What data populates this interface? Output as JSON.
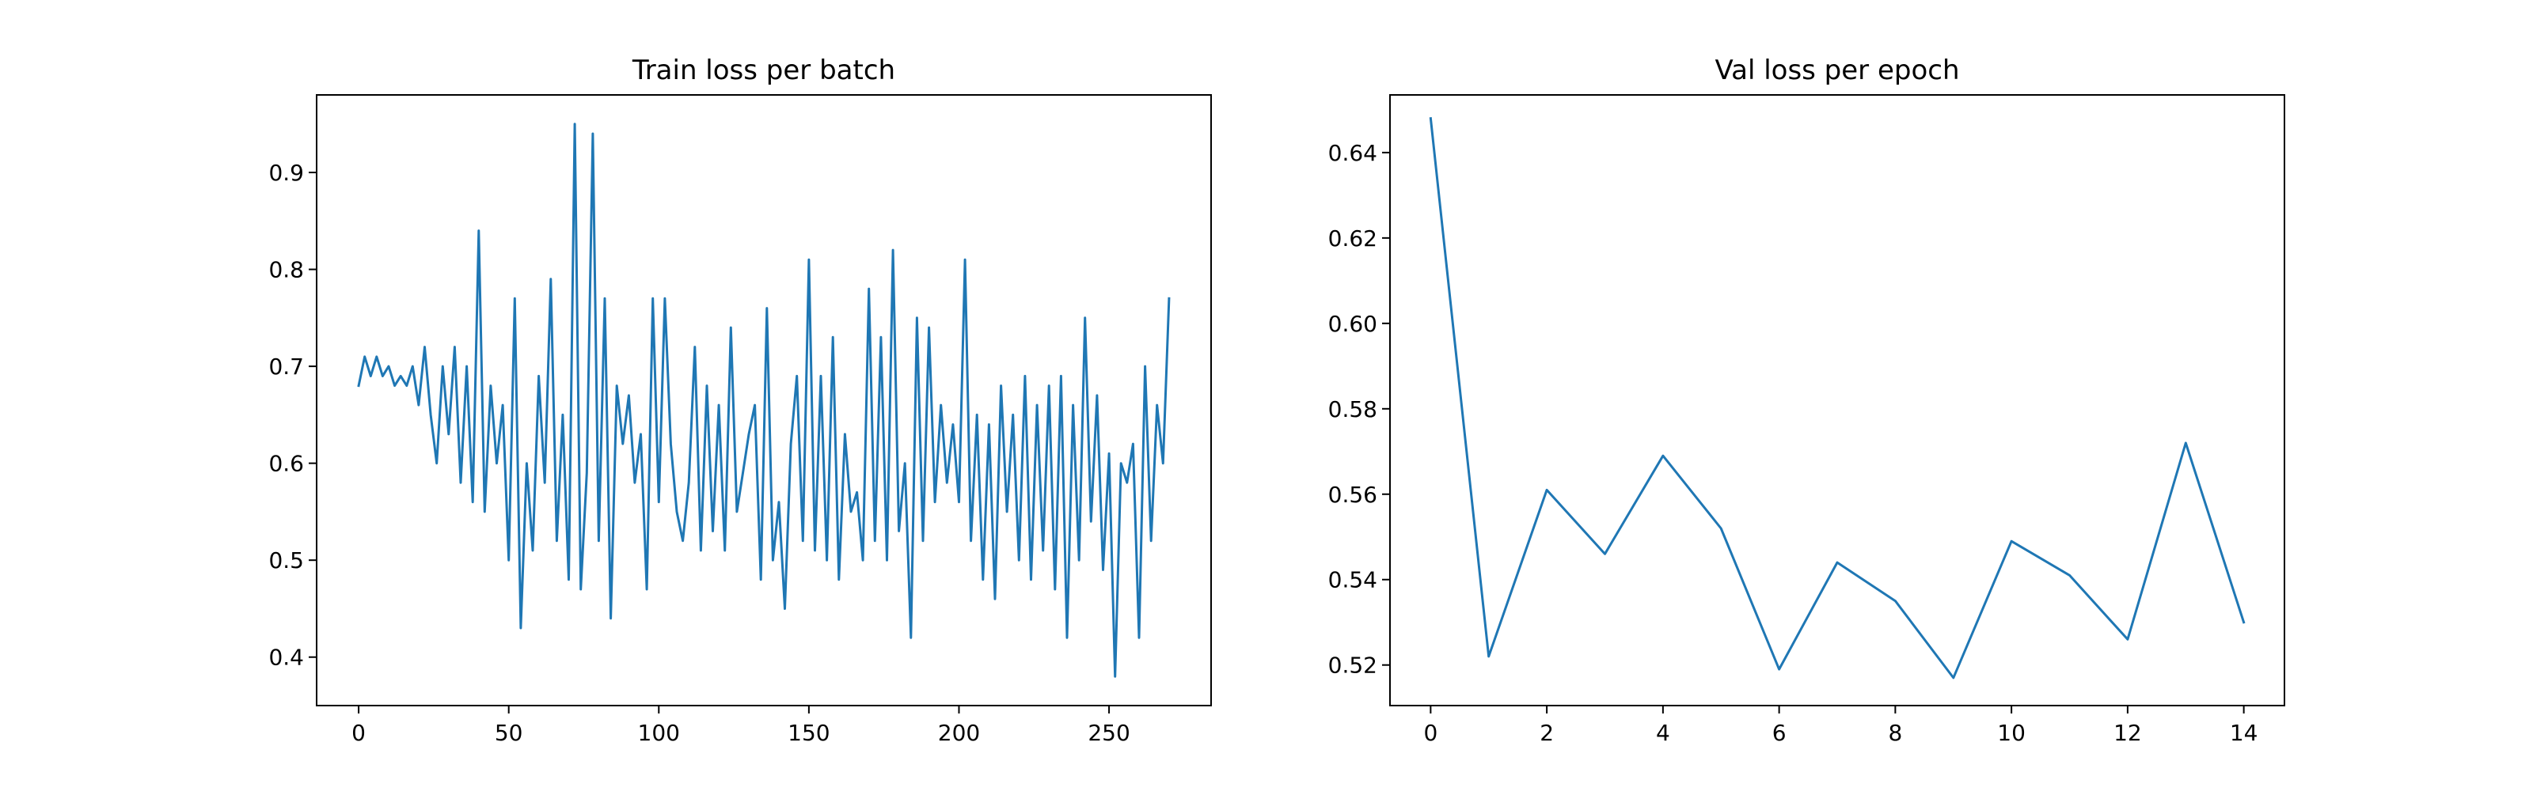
{
  "chart_data": [
    {
      "type": "line",
      "title": "Train loss per batch",
      "xlabel": "",
      "ylabel": "",
      "xlim": [
        -14,
        284
      ],
      "ylim": [
        0.35,
        0.98
      ],
      "xticks": [
        0,
        50,
        100,
        150,
        200,
        250
      ],
      "xtick_labels": [
        "0",
        "50",
        "100",
        "150",
        "200",
        "250"
      ],
      "yticks": [
        0.4,
        0.5,
        0.6,
        0.7,
        0.8,
        0.9
      ],
      "ytick_labels": [
        "0.4",
        "0.5",
        "0.6",
        "0.7",
        "0.8",
        "0.9"
      ],
      "grid": false,
      "color": "#1f77b4",
      "series": [
        {
          "x": [
            0,
            2,
            4,
            6,
            8,
            10,
            12,
            14,
            16,
            18,
            20,
            22,
            24,
            26,
            28,
            30,
            32,
            34,
            36,
            38,
            40,
            42,
            44,
            46,
            48,
            50,
            52,
            54,
            56,
            58,
            60,
            62,
            64,
            66,
            68,
            70,
            72,
            74,
            76,
            78,
            80,
            82,
            84,
            86,
            88,
            90,
            92,
            94,
            96,
            98,
            100,
            102,
            104,
            106,
            108,
            110,
            112,
            114,
            116,
            118,
            120,
            122,
            124,
            126,
            128,
            130,
            132,
            134,
            136,
            138,
            140,
            142,
            144,
            146,
            148,
            150,
            152,
            154,
            156,
            158,
            160,
            162,
            164,
            166,
            168,
            170,
            172,
            174,
            176,
            178,
            180,
            182,
            184,
            186,
            188,
            190,
            192,
            194,
            196,
            198,
            200,
            202,
            204,
            206,
            208,
            210,
            212,
            214,
            216,
            218,
            220,
            222,
            224,
            226,
            228,
            230,
            232,
            234,
            236,
            238,
            240,
            242,
            244,
            246,
            248,
            250,
            252,
            254,
            256,
            258,
            260,
            262,
            264,
            266,
            268,
            270
          ],
          "y": [
            0.68,
            0.71,
            0.69,
            0.71,
            0.69,
            0.7,
            0.68,
            0.69,
            0.68,
            0.7,
            0.66,
            0.72,
            0.65,
            0.6,
            0.7,
            0.63,
            0.72,
            0.58,
            0.7,
            0.56,
            0.84,
            0.55,
            0.68,
            0.6,
            0.66,
            0.5,
            0.77,
            0.43,
            0.6,
            0.51,
            0.69,
            0.58,
            0.79,
            0.52,
            0.65,
            0.48,
            0.95,
            0.47,
            0.59,
            0.94,
            0.52,
            0.77,
            0.44,
            0.68,
            0.62,
            0.67,
            0.58,
            0.63,
            0.47,
            0.77,
            0.56,
            0.77,
            0.62,
            0.55,
            0.52,
            0.58,
            0.72,
            0.51,
            0.68,
            0.53,
            0.66,
            0.51,
            0.74,
            0.55,
            0.59,
            0.63,
            0.66,
            0.48,
            0.76,
            0.5,
            0.56,
            0.45,
            0.62,
            0.69,
            0.52,
            0.81,
            0.51,
            0.69,
            0.5,
            0.73,
            0.48,
            0.63,
            0.55,
            0.57,
            0.5,
            0.78,
            0.52,
            0.73,
            0.5,
            0.82,
            0.53,
            0.6,
            0.42,
            0.75,
            0.52,
            0.74,
            0.56,
            0.66,
            0.58,
            0.64,
            0.56,
            0.81,
            0.52,
            0.65,
            0.48,
            0.64,
            0.46,
            0.68,
            0.55,
            0.65,
            0.5,
            0.69,
            0.48,
            0.66,
            0.51,
            0.68,
            0.47,
            0.69,
            0.42,
            0.66,
            0.5,
            0.75,
            0.54,
            0.67,
            0.49,
            0.61,
            0.38,
            0.6,
            0.58,
            0.62,
            0.42,
            0.7,
            0.52,
            0.66,
            0.6,
            0.77
          ]
        }
      ]
    },
    {
      "type": "line",
      "title": "Val loss per epoch",
      "xlabel": "",
      "ylabel": "",
      "xlim": [
        -0.7,
        14.7
      ],
      "ylim": [
        0.5105,
        0.6535
      ],
      "xticks": [
        0,
        2,
        4,
        6,
        8,
        10,
        12,
        14
      ],
      "xtick_labels": [
        "0",
        "2",
        "4",
        "6",
        "8",
        "10",
        "12",
        "14"
      ],
      "yticks": [
        0.52,
        0.54,
        0.56,
        0.58,
        0.6,
        0.62,
        0.64
      ],
      "ytick_labels": [
        "0.52",
        "0.54",
        "0.56",
        "0.58",
        "0.60",
        "0.62",
        "0.64"
      ],
      "grid": false,
      "color": "#1f77b4",
      "series": [
        {
          "x": [
            0,
            1,
            2,
            3,
            4,
            5,
            6,
            7,
            8,
            9,
            10,
            11,
            12,
            13,
            14
          ],
          "y": [
            0.648,
            0.522,
            0.561,
            0.546,
            0.569,
            0.552,
            0.519,
            0.544,
            0.535,
            0.517,
            0.549,
            0.541,
            0.526,
            0.572,
            0.53
          ]
        }
      ]
    }
  ]
}
